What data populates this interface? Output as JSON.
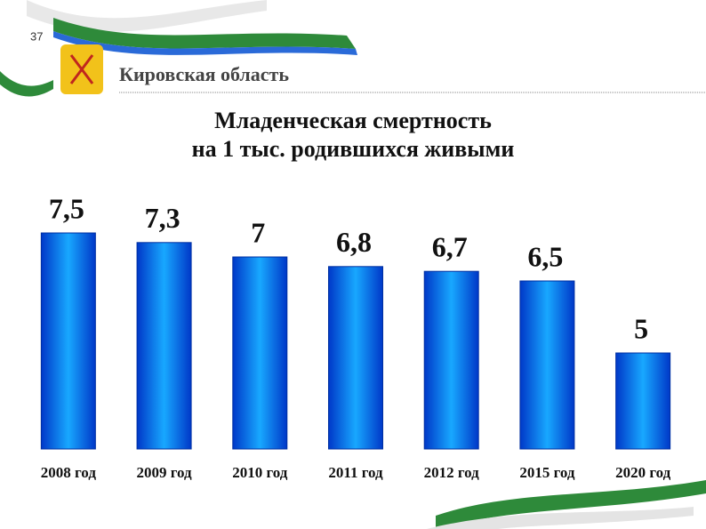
{
  "slide": {
    "number": "37",
    "header": "Кировская область"
  },
  "chart_data": {
    "type": "bar",
    "title": "Младенческая смертность",
    "subtitle": "на 1 тыс. родившихся живыми",
    "categories": [
      "2008 год",
      "2009 год",
      "2010 год",
      "2011 год",
      "2012 год",
      "2015 год",
      "2020 год"
    ],
    "values": [
      7.5,
      7.3,
      7,
      6.8,
      6.7,
      6.5,
      5
    ],
    "value_labels": [
      "7,5",
      "7,3",
      "7",
      "6,8",
      "6,7",
      "6,5",
      "5"
    ],
    "color": "#0a7cf0",
    "ylim": [
      3,
      8
    ]
  }
}
